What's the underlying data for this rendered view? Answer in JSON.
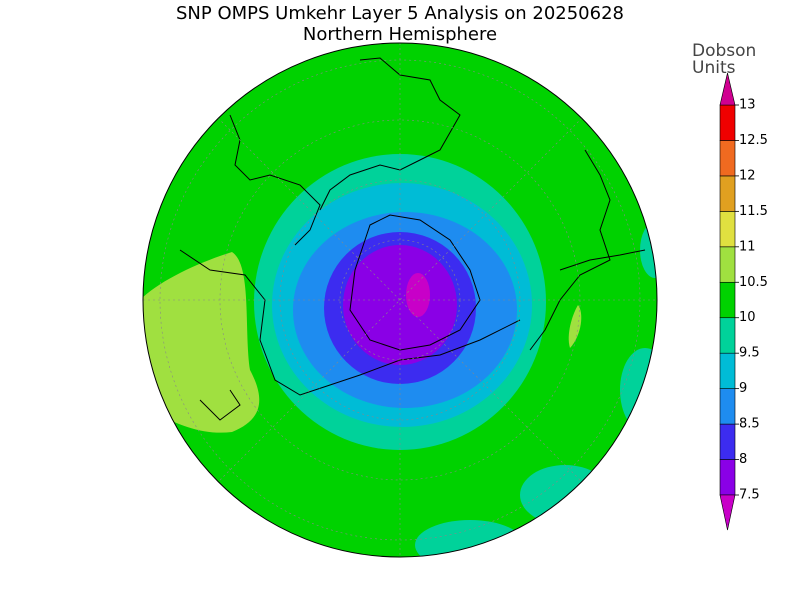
{
  "chart_data": {
    "type": "map",
    "title": "SNP OMPS Umkehr Layer 5 Analysis on 20250628",
    "subtitle": "Northern Hemisphere",
    "colorbar_label": [
      "Dobson",
      "Units"
    ],
    "levels": [
      7.5,
      8,
      8.5,
      9,
      9.5,
      10,
      10.5,
      11,
      11.5,
      12,
      12.5,
      13
    ],
    "colors": [
      "#8a00e6",
      "#3c2cf0",
      "#1e8cf0",
      "#00bcd6",
      "#00d29a",
      "#00d200",
      "#a0e040",
      "#e0e040",
      "#e0a020",
      "#f06a20",
      "#f00000"
    ],
    "under_color": "#c800c8",
    "over_color": "#d00090"
  }
}
